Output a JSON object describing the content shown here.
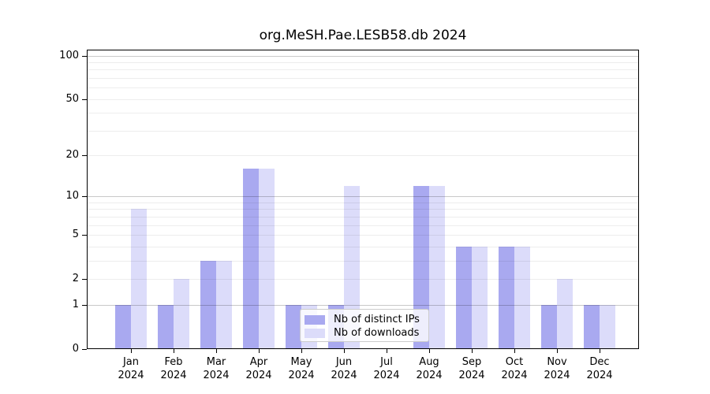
{
  "chart_data": {
    "type": "bar",
    "title": "org.MeSH.Pae.LESB58.db 2024",
    "categories": [
      "Jan",
      "Feb",
      "Mar",
      "Apr",
      "May",
      "Jun",
      "Jul",
      "Aug",
      "Sep",
      "Oct",
      "Nov",
      "Dec"
    ],
    "year_label": "2024",
    "series": [
      {
        "name": "Nb of distinct IPs",
        "color": "#a9a9f0",
        "values": [
          1,
          1,
          3,
          16,
          1,
          1,
          0,
          12,
          4,
          4,
          1,
          1
        ]
      },
      {
        "name": "Nb of downloads",
        "color": "#dcdcfa",
        "values": [
          8,
          2,
          3,
          16,
          1,
          12,
          0,
          12,
          4,
          4,
          2,
          1
        ]
      }
    ],
    "y_scale": "log1p",
    "ylim": [
      0,
      100
    ],
    "y_ticks": [
      0,
      1,
      2,
      5,
      10,
      20,
      50,
      100
    ],
    "y_major_grid": [
      1,
      10,
      100
    ],
    "y_minor_grid": [
      2,
      3,
      4,
      5,
      6,
      7,
      8,
      9,
      20,
      30,
      40,
      50,
      60,
      70,
      80,
      90
    ],
    "grid": true,
    "legend_position": "lower center",
    "colors": {
      "axis": "#000000",
      "major_grid": "rgba(0,0,0,0.21)",
      "minor_grid": "rgba(0,0,0,0.07)",
      "background": "#ffffff"
    }
  }
}
